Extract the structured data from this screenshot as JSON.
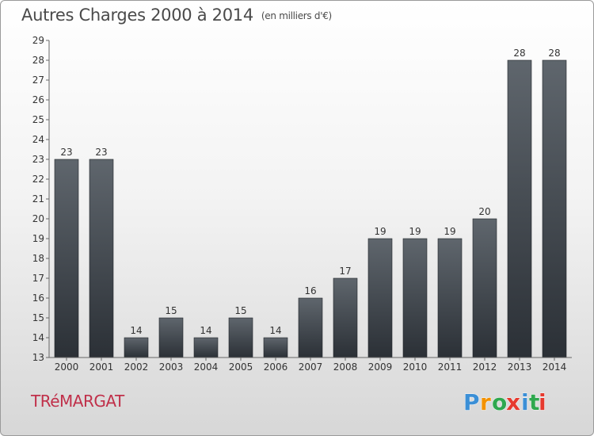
{
  "header": {
    "title": "Autres Charges 2000 à 2014",
    "unit": "(en milliers d'€)"
  },
  "footer": {
    "commune": "TRéMARGAT",
    "logo": {
      "letters": [
        "P",
        "r",
        "o",
        "x",
        "i",
        "t",
        "i"
      ],
      "colors": [
        "#3b8fd6",
        "#f39200",
        "#2fa84f",
        "#e63a2e",
        "#3b8fd6",
        "#2fa84f",
        "#e63a2e"
      ]
    }
  },
  "chart_data": {
    "type": "bar",
    "title": "Autres Charges 2000 à 2014",
    "categories": [
      "2000",
      "2001",
      "2002",
      "2003",
      "2004",
      "2005",
      "2006",
      "2007",
      "2008",
      "2009",
      "2010",
      "2011",
      "2012",
      "2013",
      "2014"
    ],
    "values": [
      23,
      23,
      14,
      15,
      14,
      15,
      14,
      16,
      17,
      19,
      19,
      19,
      20,
      28,
      28
    ],
    "data_labels": [
      "23",
      "23",
      "14",
      "15",
      "14",
      "15",
      "14",
      "16",
      "17",
      "19",
      "19",
      "19",
      "20",
      "28",
      "28"
    ],
    "ylim": [
      13,
      29
    ],
    "yticks": [
      "13",
      "14",
      "15",
      "16",
      "17",
      "18",
      "19",
      "20",
      "21",
      "22",
      "23",
      "24",
      "25",
      "26",
      "27",
      "28",
      "29"
    ],
    "grid": false,
    "bar_color_top": "#5f666d",
    "bar_color_bottom": "#2b3036"
  }
}
